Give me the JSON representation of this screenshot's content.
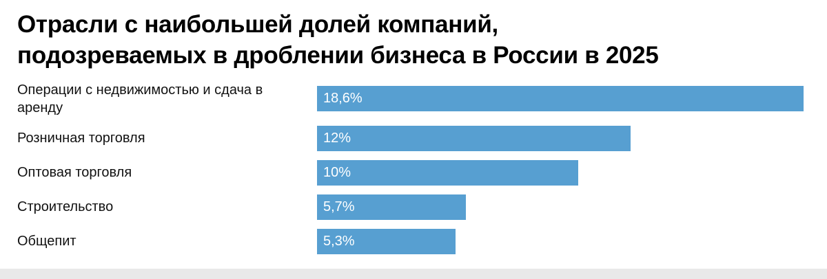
{
  "chart_data": {
    "type": "bar",
    "orientation": "horizontal",
    "title": "Отрасли с наибольшей долей компаний, подозреваемых в дроблении бизнеса в России в 2025",
    "title_lines": [
      "Отрасли с наибольшей долей компаний,",
      "подозреваемых в дроблении бизнеса в России в 2025"
    ],
    "categories": [
      "Операции с недвижимостью и сдача в аренду",
      "Розничная торговля",
      "Оптовая торговля",
      "Строительство",
      "Общепит"
    ],
    "values": [
      18.6,
      12,
      10,
      5.7,
      5.3
    ],
    "value_labels": [
      "18,6%",
      "12%",
      "10%",
      "5,7%",
      "5,3%"
    ],
    "xlim": [
      0,
      18.85
    ],
    "xlabel": "",
    "ylabel": "",
    "grid": false,
    "legend": false,
    "bar_color": "#579fd1",
    "value_label_color": "#ffffff",
    "title_color": "#000000",
    "category_label_color": "#111111",
    "background_color": "#ffffff",
    "footer_strip_color": "#e9e9e9"
  }
}
